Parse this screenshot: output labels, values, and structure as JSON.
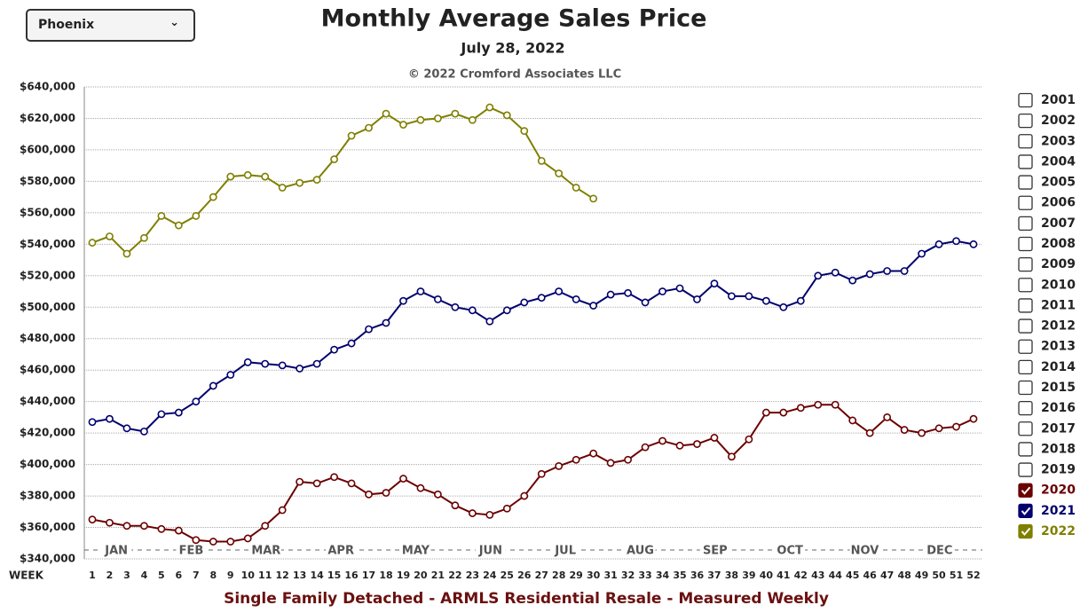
{
  "dropdown": {
    "selected": "Phoenix"
  },
  "chart_data": {
    "type": "line",
    "title": "Monthly Average Sales Price",
    "subtitle": "July 28, 2022",
    "copyright": "© 2022 Cromford Associates LLC",
    "footer": "Single Family Detached - ARMLS Residential Resale - Measured Weekly",
    "x_label": "WEEK",
    "x": [
      1,
      2,
      3,
      4,
      5,
      6,
      7,
      8,
      9,
      10,
      11,
      12,
      13,
      14,
      15,
      16,
      17,
      18,
      19,
      20,
      21,
      22,
      23,
      24,
      25,
      26,
      27,
      28,
      29,
      30,
      31,
      32,
      33,
      34,
      35,
      36,
      37,
      38,
      39,
      40,
      41,
      42,
      43,
      44,
      45,
      46,
      47,
      48,
      49,
      50,
      51,
      52
    ],
    "xlim": [
      1,
      52
    ],
    "months": [
      "JAN",
      "FEB",
      "MAR",
      "APR",
      "MAY",
      "JUN",
      "JUL",
      "AUG",
      "SEP",
      "OCT",
      "NOV",
      "DEC"
    ],
    "ylim": [
      340000,
      640000
    ],
    "yticks": [
      {
        "value": 340000,
        "label": "$340,000"
      },
      {
        "value": 360000,
        "label": "$360,000"
      },
      {
        "value": 380000,
        "label": "$380,000"
      },
      {
        "value": 400000,
        "label": "$400,000"
      },
      {
        "value": 420000,
        "label": "$420,000"
      },
      {
        "value": 440000,
        "label": "$440,000"
      },
      {
        "value": 460000,
        "label": "$460,000"
      },
      {
        "value": 480000,
        "label": "$480,000"
      },
      {
        "value": 500000,
        "label": "$500,000"
      },
      {
        "value": 520000,
        "label": "$520,000"
      },
      {
        "value": 540000,
        "label": "$540,000"
      },
      {
        "value": 560000,
        "label": "$560,000"
      },
      {
        "value": 580000,
        "label": "$580,000"
      },
      {
        "value": 600000,
        "label": "$600,000"
      },
      {
        "value": 620000,
        "label": "$620,000"
      },
      {
        "value": 640000,
        "label": "$640,000"
      }
    ],
    "grid": true,
    "legend_unchecked": [
      "2001",
      "2002",
      "2003",
      "2004",
      "2005",
      "2006",
      "2007",
      "2008",
      "2009",
      "2010",
      "2011",
      "2012",
      "2013",
      "2014",
      "2015",
      "2016",
      "2017",
      "2018",
      "2019"
    ],
    "series": [
      {
        "name": "2020",
        "color": "#6b0000",
        "values": [
          365000,
          363000,
          361000,
          361000,
          359000,
          358000,
          352000,
          351000,
          351000,
          353000,
          361000,
          371000,
          389000,
          388000,
          392000,
          388000,
          381000,
          382000,
          391000,
          385000,
          381000,
          374000,
          369000,
          368000,
          372000,
          380000,
          394000,
          399000,
          403000,
          407000,
          401000,
          403000,
          411000,
          415000,
          412000,
          413000,
          417000,
          405000,
          416000,
          433000,
          433000,
          436000,
          438000,
          438000,
          428000,
          420000,
          430000,
          422000,
          420000,
          423000,
          424000,
          429000
        ]
      },
      {
        "name": "2021",
        "color": "#00006e",
        "values": [
          427000,
          429000,
          423000,
          421000,
          432000,
          433000,
          440000,
          450000,
          457000,
          465000,
          464000,
          463000,
          461000,
          464000,
          473000,
          477000,
          486000,
          490000,
          504000,
          510000,
          505000,
          500000,
          498000,
          491000,
          498000,
          503000,
          506000,
          510000,
          505000,
          501000,
          508000,
          509000,
          503000,
          510000,
          512000,
          505000,
          515000,
          507000,
          507000,
          504000,
          500000,
          504000,
          520000,
          522000,
          517000,
          521000,
          523000,
          523000,
          534000,
          540000,
          542000,
          540000
        ]
      },
      {
        "name": "2022",
        "color": "#7f7f00",
        "values": [
          541000,
          545000,
          534000,
          544000,
          558000,
          552000,
          558000,
          570000,
          583000,
          584000,
          583000,
          576000,
          579000,
          581000,
          594000,
          609000,
          614000,
          623000,
          616000,
          619000,
          620000,
          623000,
          619000,
          627000,
          622000,
          612000,
          593000,
          585000,
          576000,
          569000,
          null,
          null,
          null,
          null,
          null,
          null,
          null,
          null,
          null,
          null,
          null,
          null,
          null,
          null,
          null,
          null,
          null,
          null,
          null,
          null,
          null,
          null
        ]
      }
    ]
  }
}
